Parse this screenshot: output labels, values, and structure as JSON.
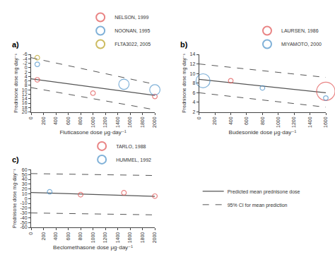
{
  "chart_data": [
    {
      "type": "scatter",
      "title": "a)",
      "xlabel": "Fluticasone dose μg·day⁻¹",
      "ylabel": "Prednisone dose mg·day⁻¹",
      "xlim": [
        0,
        2000
      ],
      "ylim": [
        20,
        -6
      ],
      "xticks": [
        0,
        200,
        400,
        600,
        800,
        1000,
        1200,
        1400,
        1600,
        1800,
        2000
      ],
      "yticks": [
        -6,
        -4,
        -2,
        0,
        2,
        4,
        6,
        8,
        10,
        12,
        14,
        16,
        18,
        20
      ],
      "grid": false,
      "legend": "upper right",
      "series": [
        {
          "name": "Predicted mean prednisone dose",
          "type": "line",
          "line_style": "solid",
          "color": "#555555",
          "x": [
            0,
            2000
          ],
          "values": [
            5.0,
            12.5
          ]
        },
        {
          "name": "95% CI for mean prediction",
          "type": "line",
          "line_style": "dashed",
          "color": "#555555",
          "x": [
            0,
            2000
          ],
          "values": [
            -4.5,
            7.5
          ]
        },
        {
          "name": "95% CI for mean prediction",
          "type": "line",
          "line_style": "dashed",
          "color": "#555555",
          "x": [
            0,
            2000
          ],
          "values": [
            9.0,
            19.0
          ]
        },
        {
          "name": "NELSON, 1999",
          "type": "scatter",
          "marker": "circle-open",
          "color": "#e05050",
          "x": [
            100,
            1000,
            2000
          ],
          "values": [
            5.5,
            11.5,
            13.0
          ],
          "sizes": [
            25,
            25,
            25
          ]
        },
        {
          "name": "NOONAN, 1995",
          "type": "scatter",
          "marker": "circle-open",
          "color": "#4a90c8",
          "x": [
            100,
            1500,
            2000
          ],
          "values": [
            -1.5,
            7.5,
            10.0
          ],
          "sizes": [
            25,
            120,
            120
          ]
        },
        {
          "name": "FLTA3022, 2005",
          "type": "scatter",
          "marker": "circle-open",
          "color": "#b8a020",
          "x": [
            100
          ],
          "values": [
            -4.5
          ],
          "sizes": [
            25
          ]
        }
      ]
    },
    {
      "type": "scatter",
      "title": "b)",
      "xlabel": "Budesonide dose μg·day⁻¹",
      "ylabel": "Prednisone dose mg·day⁻¹",
      "xlim": [
        0,
        1600
      ],
      "ylim": [
        2,
        14
      ],
      "xticks": [
        0,
        200,
        400,
        600,
        800,
        1000,
        1200,
        1400,
        1600
      ],
      "yticks": [
        2,
        4,
        6,
        8,
        10,
        12,
        14
      ],
      "grid": false,
      "legend": "upper right",
      "series": [
        {
          "name": "Predicted mean prednisone dose",
          "type": "line",
          "line_style": "solid",
          "color": "#555555",
          "x": [
            0,
            1600
          ],
          "values": [
            8.8,
            6.0
          ]
        },
        {
          "name": "95% CI for mean prediction",
          "type": "line",
          "line_style": "dashed",
          "color": "#555555",
          "x": [
            0,
            1600
          ],
          "values": [
            12.0,
            9.2
          ]
        },
        {
          "name": "95% CI for mean prediction",
          "type": "line",
          "line_style": "dashed",
          "color": "#555555",
          "x": [
            0,
            1600
          ],
          "values": [
            6.0,
            3.0
          ]
        },
        {
          "name": "LAURSEN, 1986",
          "type": "scatter",
          "marker": "circle-open",
          "color": "#e05050",
          "x": [
            400,
            1600
          ],
          "values": [
            8.5,
            6.3
          ],
          "sizes": [
            25,
            380
          ]
        },
        {
          "name": "MIYAMOTO, 2000",
          "type": "scatter",
          "marker": "circle-open",
          "color": "#4a90c8",
          "x": [
            50,
            800,
            1600
          ],
          "values": [
            8.5,
            7.0,
            4.9
          ],
          "sizes": [
            220,
            25,
            25
          ]
        }
      ]
    },
    {
      "type": "scatter",
      "title": "c)",
      "xlabel": "Beclomethasone dose μg·day⁻¹",
      "ylabel": "Prednisone dose mg·day⁻¹",
      "xlim": [
        0,
        2000
      ],
      "ylim": [
        -60,
        60
      ],
      "xticks": [
        0,
        200,
        400,
        600,
        800,
        1000,
        1200,
        1400,
        1600,
        1800,
        2000
      ],
      "yticks": [
        -60,
        -50,
        -40,
        -30,
        -20,
        -10,
        0,
        10,
        20,
        30,
        40,
        50,
        60
      ],
      "grid": false,
      "legend": "upper right",
      "series": [
        {
          "name": "Predicted mean prednisone dose",
          "type": "line",
          "line_style": "solid",
          "color": "#555555",
          "x": [
            0,
            2000
          ],
          "values": [
            12.5,
            4.5
          ]
        },
        {
          "name": "95% CI for mean prediction",
          "type": "line",
          "line_style": "dashed",
          "color": "#555555",
          "x": [
            0,
            2000
          ],
          "values": [
            52.0,
            48.0
          ]
        },
        {
          "name": "95% CI for mean prediction",
          "type": "line",
          "line_style": "dashed",
          "color": "#555555",
          "x": [
            0,
            2000
          ],
          "values": [
            -30.0,
            -34.0
          ]
        },
        {
          "name": "TARLO, 1988",
          "type": "scatter",
          "marker": "circle-open",
          "color": "#e05050",
          "x": [
            800,
            1500,
            2000
          ],
          "values": [
            8.0,
            12.0,
            5.0
          ],
          "sizes": [
            25,
            25,
            25
          ]
        },
        {
          "name": "HUMMEL, 1992",
          "type": "scatter",
          "marker": "circle-open",
          "color": "#4a90c8",
          "x": [
            300
          ],
          "values": [
            14.0
          ],
          "sizes": [
            25
          ]
        }
      ]
    }
  ]
}
